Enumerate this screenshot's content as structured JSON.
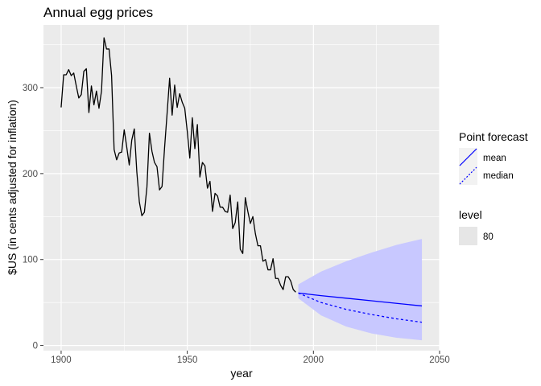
{
  "chart_data": {
    "type": "line",
    "title": "Annual egg prices",
    "xlabel": "year",
    "ylabel": "$US (in cents adjusted for inflation)",
    "xlim": [
      1893,
      2050
    ],
    "ylim": [
      -6,
      373
    ],
    "x_ticks": [
      1900,
      1950,
      2000,
      2050
    ],
    "y_ticks": [
      0,
      100,
      200,
      300
    ],
    "grid": true,
    "background": "#ebebeb",
    "series": [
      {
        "kind": "observed",
        "color": "#000000",
        "x": [
          1900,
          1901,
          1902,
          1903,
          1904,
          1905,
          1906,
          1907,
          1908,
          1909,
          1910,
          1911,
          1912,
          1913,
          1914,
          1915,
          1916,
          1917,
          1918,
          1919,
          1920,
          1921,
          1922,
          1923,
          1924,
          1925,
          1926,
          1927,
          1928,
          1929,
          1930,
          1931,
          1932,
          1933,
          1934,
          1935,
          1936,
          1937,
          1938,
          1939,
          1940,
          1941,
          1942,
          1943,
          1944,
          1945,
          1946,
          1947,
          1948,
          1949,
          1950,
          1951,
          1952,
          1953,
          1954,
          1955,
          1956,
          1957,
          1958,
          1959,
          1960,
          1961,
          1962,
          1963,
          1964,
          1965,
          1966,
          1967,
          1968,
          1969,
          1970,
          1971,
          1972,
          1973,
          1974,
          1975,
          1976,
          1977,
          1978,
          1979,
          1980,
          1981,
          1982,
          1983,
          1984,
          1985,
          1986,
          1987,
          1988,
          1989,
          1990,
          1991,
          1992,
          1993
        ],
        "y": [
          277,
          315,
          315,
          321,
          314,
          317,
          302,
          288,
          292,
          319,
          322,
          271,
          302,
          280,
          296,
          276,
          296,
          358,
          345,
          345,
          314,
          228,
          216,
          224,
          225,
          251,
          231,
          210,
          239,
          252,
          202,
          167,
          151,
          155,
          184,
          247,
          226,
          213,
          208,
          181,
          185,
          230,
          270,
          311,
          268,
          303,
          277,
          293,
          283,
          276,
          249,
          218,
          265,
          229,
          257,
          196,
          213,
          209,
          183,
          191,
          156,
          177,
          174,
          161,
          161,
          156,
          155,
          175,
          136,
          143,
          167,
          112,
          107,
          172,
          156,
          142,
          150,
          130,
          116,
          116,
          98,
          100,
          88,
          88,
          101,
          78,
          78,
          70,
          65,
          80,
          80,
          75,
          65,
          62
        ]
      }
    ],
    "forecast": {
      "x": [
        1994,
        2003,
        2013,
        2023,
        2033,
        2043
      ],
      "mean": [
        61,
        58,
        55,
        52,
        49,
        46
      ],
      "median": [
        61,
        50,
        42,
        36,
        31,
        27
      ],
      "lower80": [
        55,
        35,
        22,
        14,
        9,
        6
      ],
      "upper80": [
        71,
        86,
        98,
        108,
        117,
        124
      ]
    },
    "legend": {
      "position": "right",
      "point_forecast_title": "Point forecast",
      "mean_label": "mean",
      "median_label": "median",
      "level_title": "level",
      "level_label": "80"
    },
    "colors": {
      "forecast_line": "#0000ff",
      "interval_fill": "#c8c8ff",
      "panel_bg": "#ebebeb",
      "grid": "#ffffff"
    }
  }
}
